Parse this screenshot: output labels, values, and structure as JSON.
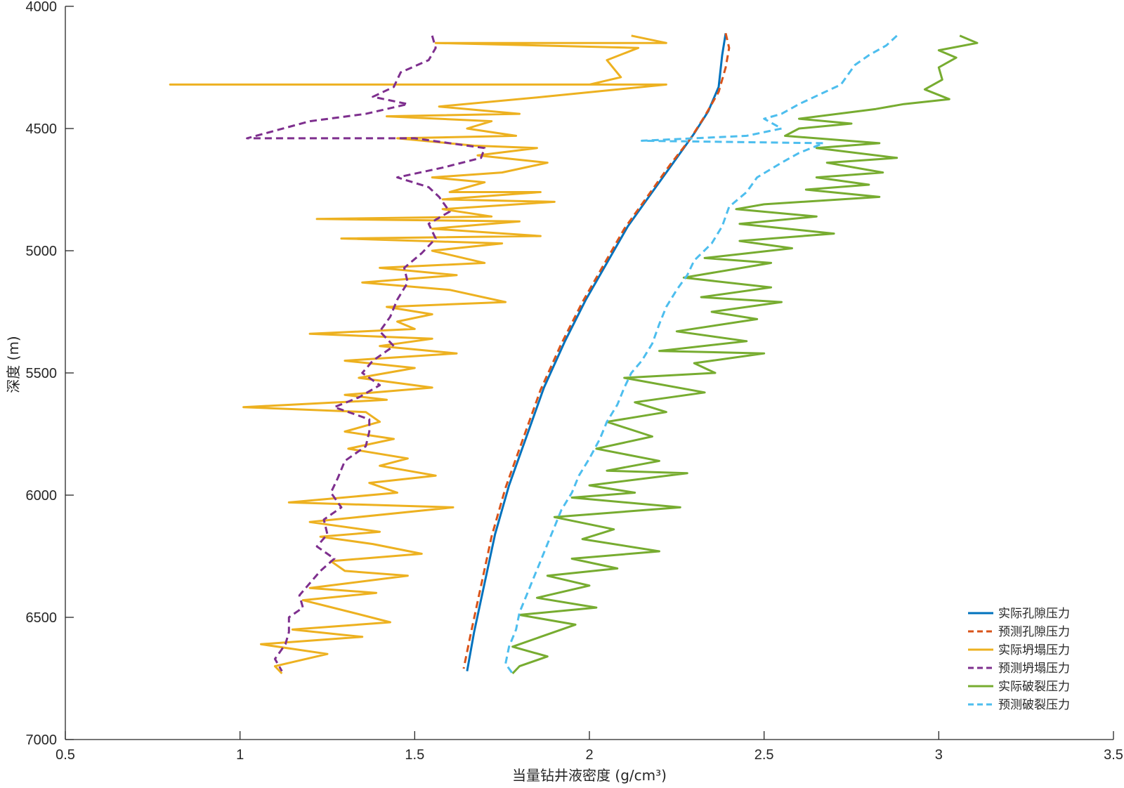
{
  "chart_data": {
    "type": "line",
    "xlabel": "当量钻井液密度 (g/cm³)",
    "ylabel": "深度 (m)",
    "xlim": [
      0.5,
      3.5
    ],
    "ylim": [
      4000,
      7000
    ],
    "y_reversed": true,
    "x_ticks": [
      0.5,
      1,
      1.5,
      2,
      2.5,
      3,
      3.5
    ],
    "y_ticks": [
      4000,
      4500,
      5000,
      5500,
      6000,
      6500,
      7000
    ],
    "x_tick_labels": [
      "0.5",
      "1",
      "1.5",
      "2",
      "2.5",
      "3",
      "3.5"
    ],
    "y_tick_labels": [
      "4000",
      "4500",
      "5000",
      "5500",
      "6000",
      "6500",
      "7000"
    ],
    "grid": false,
    "legend_position": "bottom-right",
    "series": [
      {
        "name": "实际孔隙压力",
        "color": "#0072BD",
        "dash": "solid",
        "points": [
          [
            2.39,
            4110
          ],
          [
            2.38,
            4200
          ],
          [
            2.37,
            4330
          ],
          [
            2.34,
            4430
          ],
          [
            2.3,
            4520
          ],
          [
            2.24,
            4640
          ],
          [
            2.17,
            4780
          ],
          [
            2.11,
            4900
          ],
          [
            2.05,
            5050
          ],
          [
            1.99,
            5200
          ],
          [
            1.93,
            5370
          ],
          [
            1.87,
            5560
          ],
          [
            1.82,
            5760
          ],
          [
            1.77,
            5960
          ],
          [
            1.73,
            6160
          ],
          [
            1.7,
            6360
          ],
          [
            1.67,
            6560
          ],
          [
            1.65,
            6720
          ]
        ]
      },
      {
        "name": "预测孔隙压力",
        "color": "#D95319",
        "dash": "dashed",
        "points": [
          [
            2.39,
            4110
          ],
          [
            2.4,
            4170
          ],
          [
            2.39,
            4250
          ],
          [
            2.37,
            4350
          ],
          [
            2.33,
            4450
          ],
          [
            2.29,
            4540
          ],
          [
            2.23,
            4650
          ],
          [
            2.16,
            4790
          ],
          [
            2.1,
            4910
          ],
          [
            2.04,
            5060
          ],
          [
            1.98,
            5210
          ],
          [
            1.92,
            5380
          ],
          [
            1.86,
            5570
          ],
          [
            1.81,
            5770
          ],
          [
            1.76,
            5970
          ],
          [
            1.72,
            6170
          ],
          [
            1.69,
            6370
          ],
          [
            1.66,
            6570
          ],
          [
            1.64,
            6710
          ]
        ]
      },
      {
        "name": "实际坍塌压力",
        "color": "#EDB120",
        "dash": "solid",
        "points": [
          [
            2.12,
            4120
          ],
          [
            2.22,
            4150
          ],
          [
            1.56,
            4150
          ],
          [
            2.14,
            4170
          ],
          [
            2.05,
            4220
          ],
          [
            2.09,
            4290
          ],
          [
            2.0,
            4320
          ],
          [
            0.8,
            4320
          ],
          [
            2.22,
            4320
          ],
          [
            1.87,
            4370
          ],
          [
            1.57,
            4410
          ],
          [
            1.8,
            4440
          ],
          [
            1.42,
            4450
          ],
          [
            1.72,
            4470
          ],
          [
            1.65,
            4500
          ],
          [
            1.79,
            4530
          ],
          [
            1.45,
            4540
          ],
          [
            1.67,
            4570
          ],
          [
            1.85,
            4580
          ],
          [
            1.68,
            4610
          ],
          [
            1.88,
            4640
          ],
          [
            1.75,
            4680
          ],
          [
            1.55,
            4700
          ],
          [
            1.7,
            4720
          ],
          [
            1.6,
            4760
          ],
          [
            1.86,
            4760
          ],
          [
            1.58,
            4790
          ],
          [
            1.9,
            4800
          ],
          [
            1.58,
            4830
          ],
          [
            1.72,
            4860
          ],
          [
            1.22,
            4870
          ],
          [
            1.8,
            4880
          ],
          [
            1.55,
            4910
          ],
          [
            1.86,
            4940
          ],
          [
            1.29,
            4950
          ],
          [
            1.75,
            4970
          ],
          [
            1.55,
            5000
          ],
          [
            1.7,
            5050
          ],
          [
            1.4,
            5070
          ],
          [
            1.62,
            5100
          ],
          [
            1.35,
            5130
          ],
          [
            1.6,
            5160
          ],
          [
            1.76,
            5210
          ],
          [
            1.42,
            5230
          ],
          [
            1.55,
            5260
          ],
          [
            1.45,
            5290
          ],
          [
            1.5,
            5320
          ],
          [
            1.2,
            5340
          ],
          [
            1.55,
            5360
          ],
          [
            1.4,
            5390
          ],
          [
            1.62,
            5420
          ],
          [
            1.3,
            5450
          ],
          [
            1.5,
            5480
          ],
          [
            1.34,
            5520
          ],
          [
            1.55,
            5560
          ],
          [
            1.3,
            5590
          ],
          [
            1.42,
            5610
          ],
          [
            1.01,
            5640
          ],
          [
            1.36,
            5660
          ],
          [
            1.4,
            5700
          ],
          [
            1.3,
            5740
          ],
          [
            1.44,
            5770
          ],
          [
            1.31,
            5810
          ],
          [
            1.48,
            5850
          ],
          [
            1.4,
            5880
          ],
          [
            1.56,
            5920
          ],
          [
            1.37,
            5950
          ],
          [
            1.45,
            5990
          ],
          [
            1.14,
            6030
          ],
          [
            1.61,
            6050
          ],
          [
            1.2,
            6110
          ],
          [
            1.4,
            6150
          ],
          [
            1.23,
            6170
          ],
          [
            1.38,
            6200
          ],
          [
            1.52,
            6240
          ],
          [
            1.26,
            6270
          ],
          [
            1.3,
            6310
          ],
          [
            1.48,
            6330
          ],
          [
            1.2,
            6380
          ],
          [
            1.39,
            6400
          ],
          [
            1.18,
            6430
          ],
          [
            1.32,
            6480
          ],
          [
            1.43,
            6520
          ],
          [
            1.15,
            6550
          ],
          [
            1.35,
            6580
          ],
          [
            1.06,
            6610
          ],
          [
            1.25,
            6650
          ],
          [
            1.1,
            6700
          ],
          [
            1.12,
            6730
          ]
        ]
      },
      {
        "name": "预测坍塌压力",
        "color": "#7E2F8E",
        "dash": "dashed",
        "points": [
          [
            1.55,
            4120
          ],
          [
            1.56,
            4170
          ],
          [
            1.54,
            4220
          ],
          [
            1.46,
            4270
          ],
          [
            1.44,
            4330
          ],
          [
            1.38,
            4370
          ],
          [
            1.48,
            4400
          ],
          [
            1.36,
            4440
          ],
          [
            1.2,
            4470
          ],
          [
            1.02,
            4540
          ],
          [
            1.5,
            4540
          ],
          [
            1.7,
            4580
          ],
          [
            1.69,
            4620
          ],
          [
            1.58,
            4660
          ],
          [
            1.45,
            4700
          ],
          [
            1.54,
            4740
          ],
          [
            1.57,
            4780
          ],
          [
            1.6,
            4840
          ],
          [
            1.54,
            4890
          ],
          [
            1.56,
            4950
          ],
          [
            1.52,
            5010
          ],
          [
            1.47,
            5070
          ],
          [
            1.48,
            5130
          ],
          [
            1.45,
            5200
          ],
          [
            1.43,
            5270
          ],
          [
            1.4,
            5330
          ],
          [
            1.44,
            5390
          ],
          [
            1.38,
            5450
          ],
          [
            1.35,
            5500
          ],
          [
            1.4,
            5550
          ],
          [
            1.34,
            5600
          ],
          [
            1.27,
            5640
          ],
          [
            1.37,
            5690
          ],
          [
            1.37,
            5740
          ],
          [
            1.36,
            5800
          ],
          [
            1.3,
            5860
          ],
          [
            1.28,
            5930
          ],
          [
            1.26,
            5990
          ],
          [
            1.29,
            6050
          ],
          [
            1.24,
            6100
          ],
          [
            1.25,
            6160
          ],
          [
            1.22,
            6210
          ],
          [
            1.27,
            6260
          ],
          [
            1.23,
            6310
          ],
          [
            1.2,
            6360
          ],
          [
            1.17,
            6410
          ],
          [
            1.18,
            6460
          ],
          [
            1.14,
            6500
          ],
          [
            1.14,
            6560
          ],
          [
            1.13,
            6610
          ],
          [
            1.1,
            6670
          ],
          [
            1.12,
            6720
          ]
        ]
      },
      {
        "name": "实际破裂压力",
        "color": "#77AC30",
        "dash": "solid",
        "points": [
          [
            3.06,
            4120
          ],
          [
            3.11,
            4150
          ],
          [
            3.0,
            4180
          ],
          [
            3.05,
            4210
          ],
          [
            3.0,
            4250
          ],
          [
            3.01,
            4300
          ],
          [
            2.96,
            4340
          ],
          [
            3.03,
            4380
          ],
          [
            2.9,
            4400
          ],
          [
            2.82,
            4420
          ],
          [
            2.6,
            4460
          ],
          [
            2.75,
            4480
          ],
          [
            2.6,
            4500
          ],
          [
            2.56,
            4530
          ],
          [
            2.83,
            4560
          ],
          [
            2.65,
            4580
          ],
          [
            2.88,
            4620
          ],
          [
            2.68,
            4640
          ],
          [
            2.84,
            4680
          ],
          [
            2.65,
            4700
          ],
          [
            2.8,
            4730
          ],
          [
            2.62,
            4750
          ],
          [
            2.83,
            4780
          ],
          [
            2.5,
            4810
          ],
          [
            2.42,
            4830
          ],
          [
            2.65,
            4860
          ],
          [
            2.43,
            4890
          ],
          [
            2.7,
            4930
          ],
          [
            2.43,
            4960
          ],
          [
            2.58,
            4990
          ],
          [
            2.33,
            5030
          ],
          [
            2.52,
            5050
          ],
          [
            2.27,
            5110
          ],
          [
            2.52,
            5150
          ],
          [
            2.32,
            5190
          ],
          [
            2.55,
            5210
          ],
          [
            2.35,
            5250
          ],
          [
            2.48,
            5280
          ],
          [
            2.25,
            5330
          ],
          [
            2.45,
            5370
          ],
          [
            2.2,
            5410
          ],
          [
            2.5,
            5420
          ],
          [
            2.3,
            5460
          ],
          [
            2.36,
            5500
          ],
          [
            2.1,
            5520
          ],
          [
            2.33,
            5580
          ],
          [
            2.13,
            5620
          ],
          [
            2.22,
            5660
          ],
          [
            2.05,
            5700
          ],
          [
            2.18,
            5760
          ],
          [
            2.02,
            5810
          ],
          [
            2.2,
            5860
          ],
          [
            2.05,
            5900
          ],
          [
            2.28,
            5910
          ],
          [
            2.0,
            5960
          ],
          [
            2.13,
            5990
          ],
          [
            1.95,
            6010
          ],
          [
            2.26,
            6050
          ],
          [
            1.9,
            6090
          ],
          [
            2.07,
            6140
          ],
          [
            1.98,
            6180
          ],
          [
            2.2,
            6230
          ],
          [
            1.95,
            6260
          ],
          [
            2.08,
            6300
          ],
          [
            1.88,
            6330
          ],
          [
            2.0,
            6370
          ],
          [
            1.85,
            6420
          ],
          [
            2.02,
            6460
          ],
          [
            1.8,
            6490
          ],
          [
            1.96,
            6530
          ],
          [
            1.86,
            6580
          ],
          [
            1.78,
            6620
          ],
          [
            1.88,
            6660
          ],
          [
            1.8,
            6700
          ],
          [
            1.78,
            6730
          ]
        ]
      },
      {
        "name": "预测破裂压力",
        "color": "#4DBEEE",
        "dash": "dashed",
        "points": [
          [
            2.88,
            4120
          ],
          [
            2.85,
            4160
          ],
          [
            2.8,
            4200
          ],
          [
            2.76,
            4240
          ],
          [
            2.74,
            4280
          ],
          [
            2.72,
            4320
          ],
          [
            2.66,
            4360
          ],
          [
            2.6,
            4400
          ],
          [
            2.55,
            4440
          ],
          [
            2.5,
            4460
          ],
          [
            2.55,
            4500
          ],
          [
            2.45,
            4530
          ],
          [
            2.15,
            4550
          ],
          [
            2.67,
            4560
          ],
          [
            2.6,
            4600
          ],
          [
            2.55,
            4640
          ],
          [
            2.48,
            4700
          ],
          [
            2.45,
            4760
          ],
          [
            2.4,
            4820
          ],
          [
            2.38,
            4900
          ],
          [
            2.35,
            4970
          ],
          [
            2.3,
            5040
          ],
          [
            2.28,
            5100
          ],
          [
            2.25,
            5160
          ],
          [
            2.22,
            5230
          ],
          [
            2.2,
            5300
          ],
          [
            2.18,
            5380
          ],
          [
            2.15,
            5450
          ],
          [
            2.12,
            5500
          ],
          [
            2.1,
            5560
          ],
          [
            2.08,
            5630
          ],
          [
            2.05,
            5700
          ],
          [
            2.03,
            5770
          ],
          [
            2.0,
            5850
          ],
          [
            1.97,
            5920
          ],
          [
            1.95,
            5990
          ],
          [
            1.92,
            6060
          ],
          [
            1.9,
            6130
          ],
          [
            1.88,
            6200
          ],
          [
            1.86,
            6270
          ],
          [
            1.84,
            6340
          ],
          [
            1.82,
            6410
          ],
          [
            1.8,
            6480
          ],
          [
            1.79,
            6550
          ],
          [
            1.77,
            6620
          ],
          [
            1.76,
            6690
          ],
          [
            1.78,
            6730
          ]
        ]
      }
    ]
  }
}
